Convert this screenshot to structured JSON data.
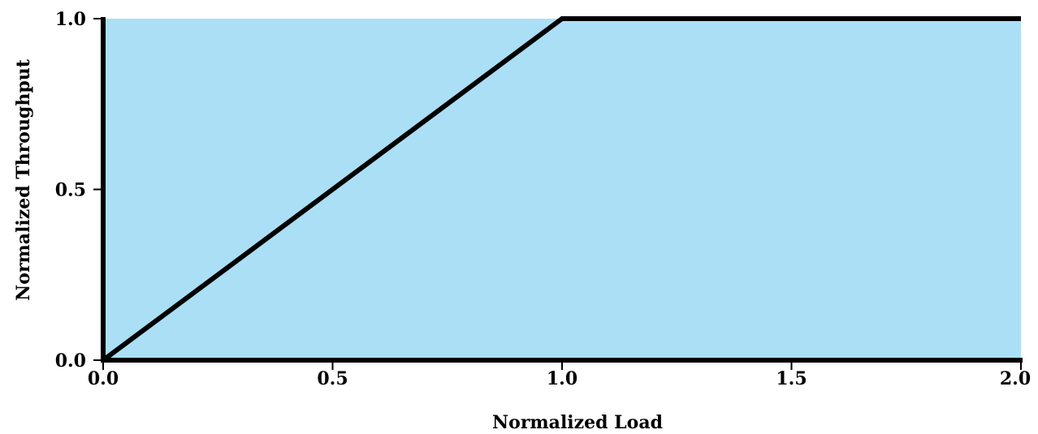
{
  "chart_data": {
    "type": "line",
    "title": "",
    "xlabel": "Normalized Load",
    "ylabel": "Normalized Throughput",
    "xlim": [
      0.0,
      2.0
    ],
    "ylim": [
      0.0,
      1.0
    ],
    "x_ticks": [
      {
        "value": 0.0,
        "label": "0.0"
      },
      {
        "value": 0.5,
        "label": "0.5"
      },
      {
        "value": 1.0,
        "label": "1.0"
      },
      {
        "value": 1.5,
        "label": "1.5"
      },
      {
        "value": 2.0,
        "label": "2.0"
      }
    ],
    "y_ticks": [
      {
        "value": 0.0,
        "label": "0.0"
      },
      {
        "value": 0.5,
        "label": "0.5"
      },
      {
        "value": 1.0,
        "label": "1.0"
      }
    ],
    "grid": false,
    "legend": "none",
    "series": [
      {
        "x": [
          0.0,
          1.0,
          2.0
        ],
        "y": [
          0.0,
          1.0,
          1.0
        ],
        "color": "#000000"
      }
    ],
    "plot_background_color": "#abdff6",
    "axis_color": "#000000"
  }
}
